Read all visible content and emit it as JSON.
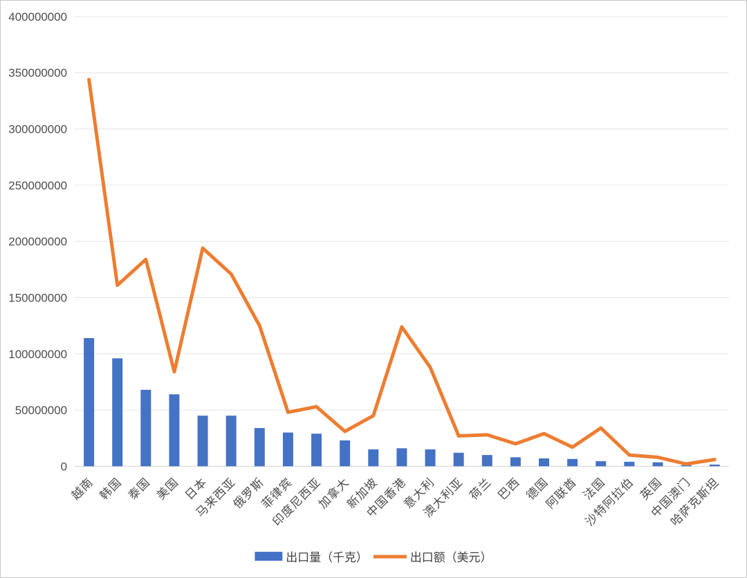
{
  "chart_data": {
    "type": "bar",
    "combo": "bar+line",
    "title": "",
    "xlabel": "",
    "ylabel": "",
    "categories": [
      "越南",
      "韩国",
      "泰国",
      "美国",
      "日本",
      "马来西亚",
      "俄罗斯",
      "菲律宾",
      "印度尼西亚",
      "加拿大",
      "新加坡",
      "中国香港",
      "意大利",
      "澳大利亚",
      "荷兰",
      "巴西",
      "德国",
      "阿联酋",
      "法国",
      "沙特阿拉伯",
      "英国",
      "中国澳门",
      "哈萨克斯坦"
    ],
    "series": [
      {
        "name": "出口量（千克）",
        "type": "bar",
        "color": "#4472C4",
        "values": [
          114000000,
          96000000,
          68000000,
          64000000,
          45000000,
          45000000,
          34000000,
          30000000,
          29000000,
          23000000,
          15000000,
          16000000,
          15000000,
          12000000,
          10000000,
          8000000,
          7000000,
          6500000,
          4500000,
          4000000,
          3500000,
          1000000,
          1500000
        ]
      },
      {
        "name": "出口额（美元）",
        "type": "line",
        "color": "#ED7D31",
        "values": [
          344000000,
          161000000,
          184000000,
          84000000,
          194000000,
          171000000,
          125000000,
          48000000,
          53000000,
          31000000,
          45000000,
          124000000,
          88000000,
          27000000,
          28000000,
          20000000,
          29000000,
          17000000,
          34000000,
          10000000,
          8000000,
          2000000,
          6000000
        ]
      }
    ],
    "ylim": [
      0,
      400000000
    ],
    "ytick_step": 50000000,
    "ytick_labels": [
      "0",
      "50000000",
      "100000000",
      "150000000",
      "200000000",
      "250000000",
      "300000000",
      "350000000",
      "400000000"
    ],
    "grid": true,
    "legend_position": "bottom",
    "xtick_rotation_deg": 45
  },
  "colors": {
    "bar": "#4472C4",
    "line": "#ED7D31",
    "gridline": "#e4e4e4",
    "axis_line": "#d2d2d2",
    "tick_text": "#4d4d4d",
    "background": "#ffffff",
    "frame_border": "#c6c6c6"
  }
}
